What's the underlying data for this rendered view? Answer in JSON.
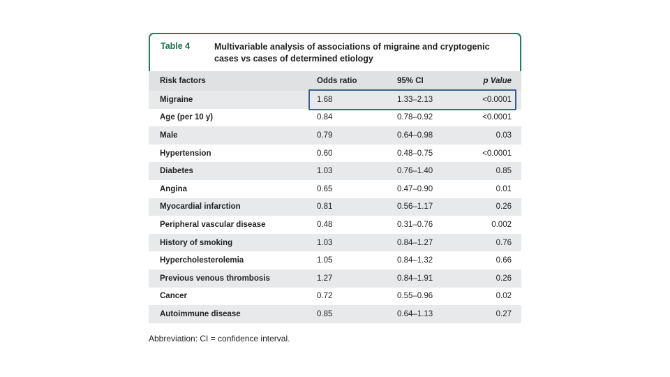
{
  "table": {
    "label": "Table 4",
    "title": "Multivariable analysis of associations of migraine and cryptogenic cases vs cases of determined etiology",
    "columns": [
      "Risk factors",
      "Odds ratio",
      "95% CI",
      "p Value"
    ],
    "rows": [
      {
        "factor": "Migraine",
        "or": "1.68",
        "ci": "1.33–2.13",
        "p": "<0.0001"
      },
      {
        "factor": "Age (per 10 y)",
        "or": "0.84",
        "ci": "0.78–0.92",
        "p": "<0.0001"
      },
      {
        "factor": "Male",
        "or": "0.79",
        "ci": "0.64–0.98",
        "p": "0.03"
      },
      {
        "factor": "Hypertension",
        "or": "0.60",
        "ci": "0.48–0.75",
        "p": "<0.0001"
      },
      {
        "factor": "Diabetes",
        "or": "1.03",
        "ci": "0.76–1.40",
        "p": "0.85"
      },
      {
        "factor": "Angina",
        "or": "0.65",
        "ci": "0.47–0.90",
        "p": "0.01"
      },
      {
        "factor": "Myocardial infarction",
        "or": "0.81",
        "ci": "0.56–1.17",
        "p": "0.26"
      },
      {
        "factor": "Peripheral vascular disease",
        "or": "0.48",
        "ci": "0.31–0.76",
        "p": "0.002"
      },
      {
        "factor": "History of smoking",
        "or": "1.03",
        "ci": "0.84–1.27",
        "p": "0.76"
      },
      {
        "factor": "Hypercholesterolemia",
        "or": "1.05",
        "ci": "0.84–1.32",
        "p": "0.66"
      },
      {
        "factor": "Previous venous thrombosis",
        "or": "1.27",
        "ci": "0.84–1.91",
        "p": "0.26"
      },
      {
        "factor": "Cancer",
        "or": "0.72",
        "ci": "0.55–0.96",
        "p": "0.02"
      },
      {
        "factor": "Autoimmune disease",
        "or": "0.85",
        "ci": "0.64–1.13",
        "p": "0.27"
      }
    ],
    "footnote": "Abbreviation: CI = confidence interval."
  },
  "colors": {
    "accent": "#1d6e4b",
    "highlight_border": "#3d5f95",
    "shade": "#e8e9eb"
  }
}
